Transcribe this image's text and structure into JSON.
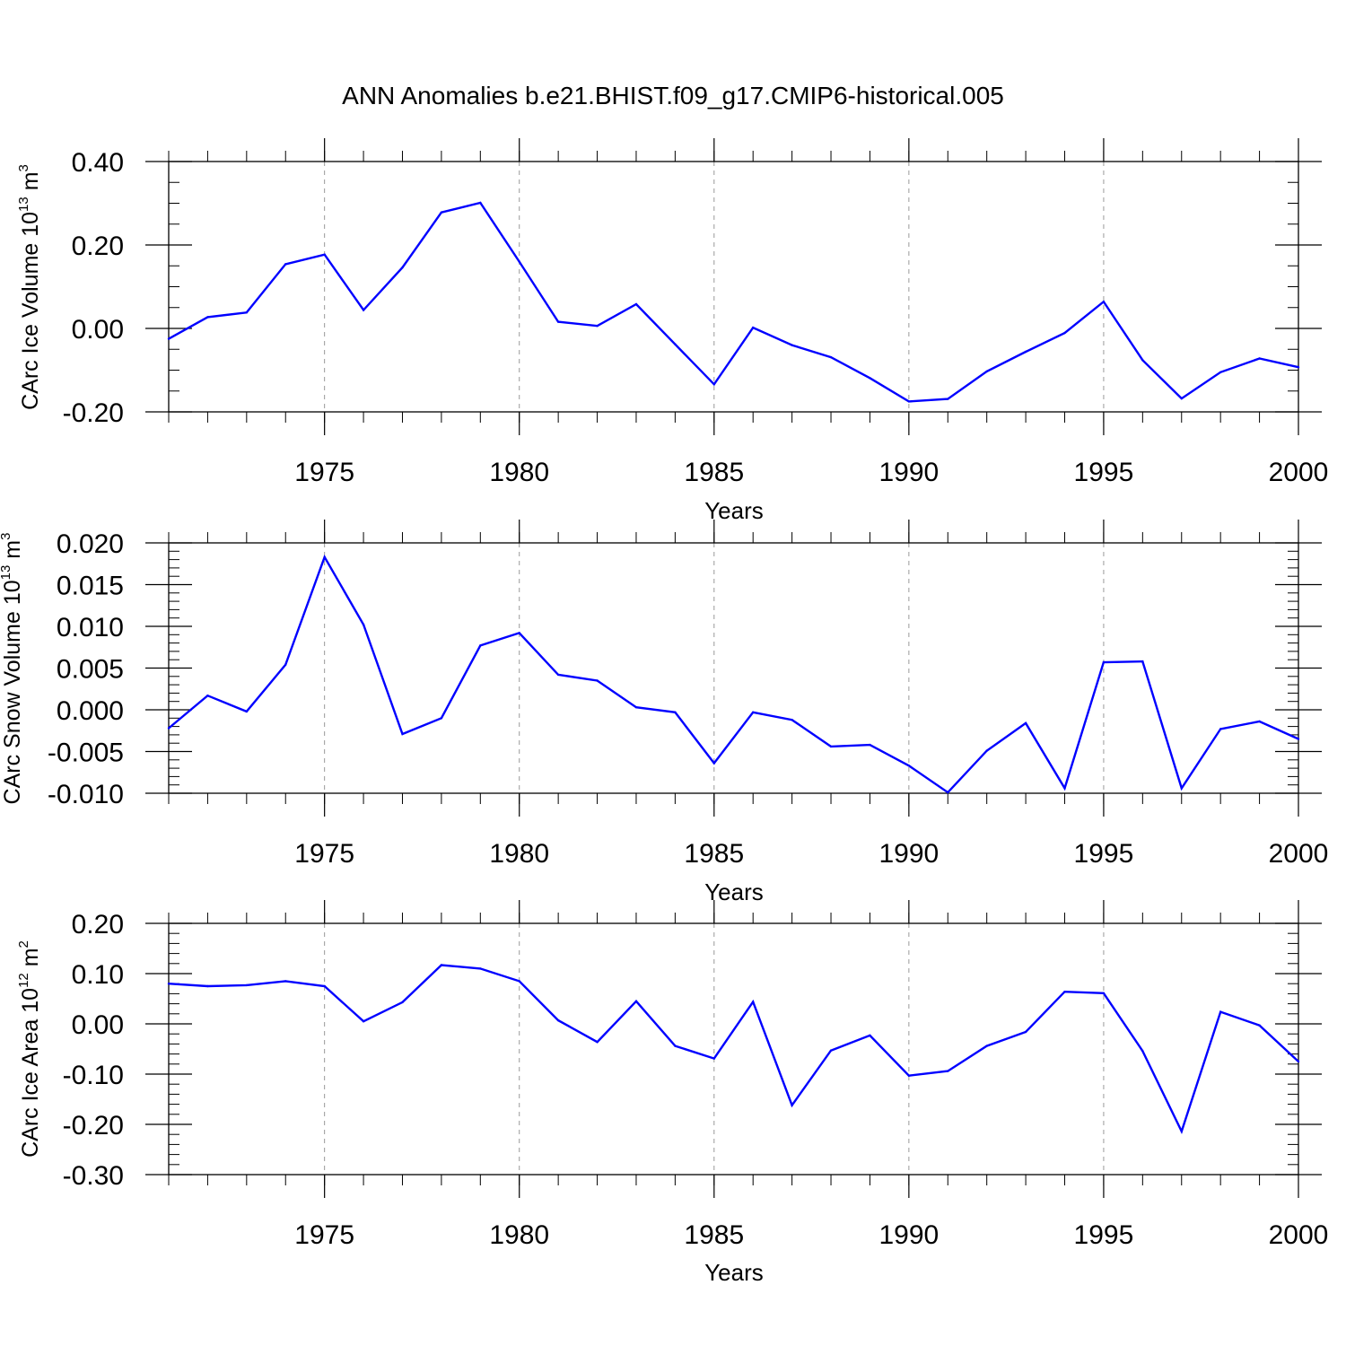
{
  "title": "ANN Anomalies b.e21.BHIST.f09_g17.CMIP6-historical.005",
  "colors": {
    "series": "#0000ff",
    "axis": "#000000",
    "grid": "#999999"
  },
  "chart_data": [
    {
      "type": "line",
      "ylabel": {
        "prefix": "CArc Ice Volume 10",
        "exp1": "13",
        "mid": " m",
        "exp2": "3"
      },
      "xlabel": "Years",
      "xlim": [
        1971,
        2000
      ],
      "ylim": [
        -0.2,
        0.4
      ],
      "yticks": [
        -0.2,
        0.0,
        0.2,
        0.4
      ],
      "ytick_labels": [
        "-0.20",
        "0.00",
        "0.20",
        "0.40"
      ],
      "yminor_step": 0.05,
      "xticks": [
        1975,
        1980,
        1985,
        1990,
        1995,
        2000
      ],
      "xtick_labels": [
        "1975",
        "1980",
        "1985",
        "1990",
        "1995",
        "2000"
      ],
      "grid": "vertical-dashed",
      "x": [
        1971,
        1972,
        1973,
        1974,
        1975,
        1976,
        1977,
        1978,
        1979,
        1980,
        1981,
        1982,
        1983,
        1984,
        1985,
        1986,
        1987,
        1988,
        1989,
        1990,
        1991,
        1992,
        1993,
        1994,
        1995,
        1996,
        1997,
        1998,
        1999,
        2000
      ],
      "y": [
        -0.025,
        0.027,
        0.038,
        0.154,
        0.177,
        0.044,
        0.146,
        0.278,
        0.301,
        0.16,
        0.016,
        0.006,
        0.058,
        -0.038,
        -0.134,
        0.002,
        -0.04,
        -0.069,
        -0.119,
        -0.175,
        -0.169,
        -0.103,
        -0.056,
        -0.011,
        0.064,
        -0.076,
        -0.168,
        -0.105,
        -0.072,
        -0.093
      ]
    },
    {
      "type": "line",
      "ylabel": {
        "prefix": "CArc Snow Volume 10",
        "exp1": "13",
        "mid": " m",
        "exp2": "3"
      },
      "xlabel": "Years",
      "xlim": [
        1971,
        2000
      ],
      "ylim": [
        -0.01,
        0.02
      ],
      "yticks": [
        -0.01,
        -0.005,
        0.0,
        0.005,
        0.01,
        0.015,
        0.02
      ],
      "ytick_labels": [
        "-0.010",
        "-0.005",
        "0.000",
        "0.005",
        "0.010",
        "0.015",
        "0.020"
      ],
      "yminor_step": 0.001,
      "xticks": [
        1975,
        1980,
        1985,
        1990,
        1995,
        2000
      ],
      "xtick_labels": [
        "1975",
        "1980",
        "1985",
        "1990",
        "1995",
        "2000"
      ],
      "grid": "vertical-dashed",
      "x": [
        1971,
        1972,
        1973,
        1974,
        1975,
        1976,
        1977,
        1978,
        1979,
        1980,
        1981,
        1982,
        1983,
        1984,
        1985,
        1986,
        1987,
        1988,
        1989,
        1990,
        1991,
        1992,
        1993,
        1994,
        1995,
        1996,
        1997,
        1998,
        1999,
        2000
      ],
      "y": [
        -0.0022,
        0.0017,
        -0.0002,
        0.0054,
        0.0183,
        0.0102,
        -0.0029,
        -0.001,
        0.0077,
        0.0092,
        0.0042,
        0.0035,
        0.0003,
        -0.0003,
        -0.0064,
        -0.0003,
        -0.0012,
        -0.0044,
        -0.0042,
        -0.0067,
        -0.0099,
        -0.0049,
        -0.0016,
        -0.0094,
        0.0057,
        0.0058,
        -0.0094,
        -0.0023,
        -0.0014,
        -0.0035
      ]
    },
    {
      "type": "line",
      "ylabel": {
        "prefix": "CArc Ice Area 10",
        "exp1": "12",
        "mid": " m",
        "exp2": "2"
      },
      "xlabel": "Years",
      "xlim": [
        1971,
        2000
      ],
      "ylim": [
        -0.3,
        0.2
      ],
      "yticks": [
        -0.3,
        -0.2,
        -0.1,
        0.0,
        0.1,
        0.2
      ],
      "ytick_labels": [
        "-0.30",
        "-0.20",
        "-0.10",
        "0.00",
        "0.10",
        "0.20"
      ],
      "yminor_step": 0.02,
      "xticks": [
        1975,
        1980,
        1985,
        1990,
        1995,
        2000
      ],
      "xtick_labels": [
        "1975",
        "1980",
        "1985",
        "1990",
        "1995",
        "2000"
      ],
      "grid": "vertical-dashed",
      "x": [
        1971,
        1972,
        1973,
        1974,
        1975,
        1976,
        1977,
        1978,
        1979,
        1980,
        1981,
        1982,
        1983,
        1984,
        1985,
        1986,
        1987,
        1988,
        1989,
        1990,
        1991,
        1992,
        1993,
        1994,
        1995,
        1996,
        1997,
        1998,
        1999,
        2000
      ],
      "y": [
        0.08,
        0.075,
        0.077,
        0.085,
        0.075,
        0.005,
        0.043,
        0.117,
        0.11,
        0.085,
        0.007,
        -0.036,
        0.045,
        -0.044,
        -0.069,
        0.044,
        -0.162,
        -0.053,
        -0.023,
        -0.103,
        -0.094,
        -0.044,
        -0.016,
        0.064,
        0.061,
        -0.054,
        -0.214,
        0.024,
        -0.003,
        -0.075
      ]
    }
  ]
}
